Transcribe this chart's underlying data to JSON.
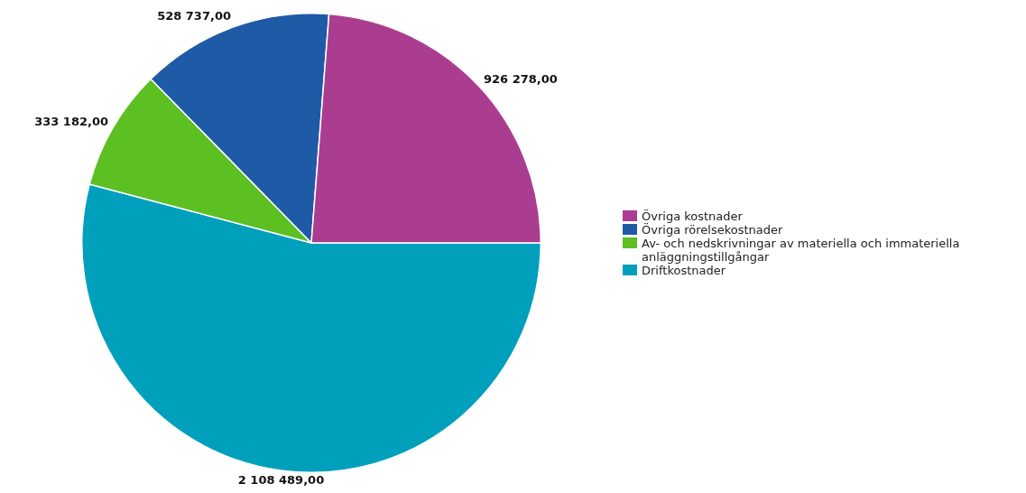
{
  "chart_data": {
    "type": "pie",
    "categories": [
      "Övriga kostnader",
      "Övriga rörelsekostnader",
      "Av- och nedskrivningar av materiella och immateriella anläggningstillgångar",
      "Driftkostnader"
    ],
    "values": [
      926278,
      528737,
      333182,
      2108489
    ],
    "colors": [
      "#ab3d91",
      "#1f5aa6",
      "#5cbf22",
      "#00a0bc"
    ],
    "value_labels": [
      "926 278,00",
      "528 737,00",
      "333 182,00",
      "2 108 489,00"
    ],
    "legend": "right"
  }
}
